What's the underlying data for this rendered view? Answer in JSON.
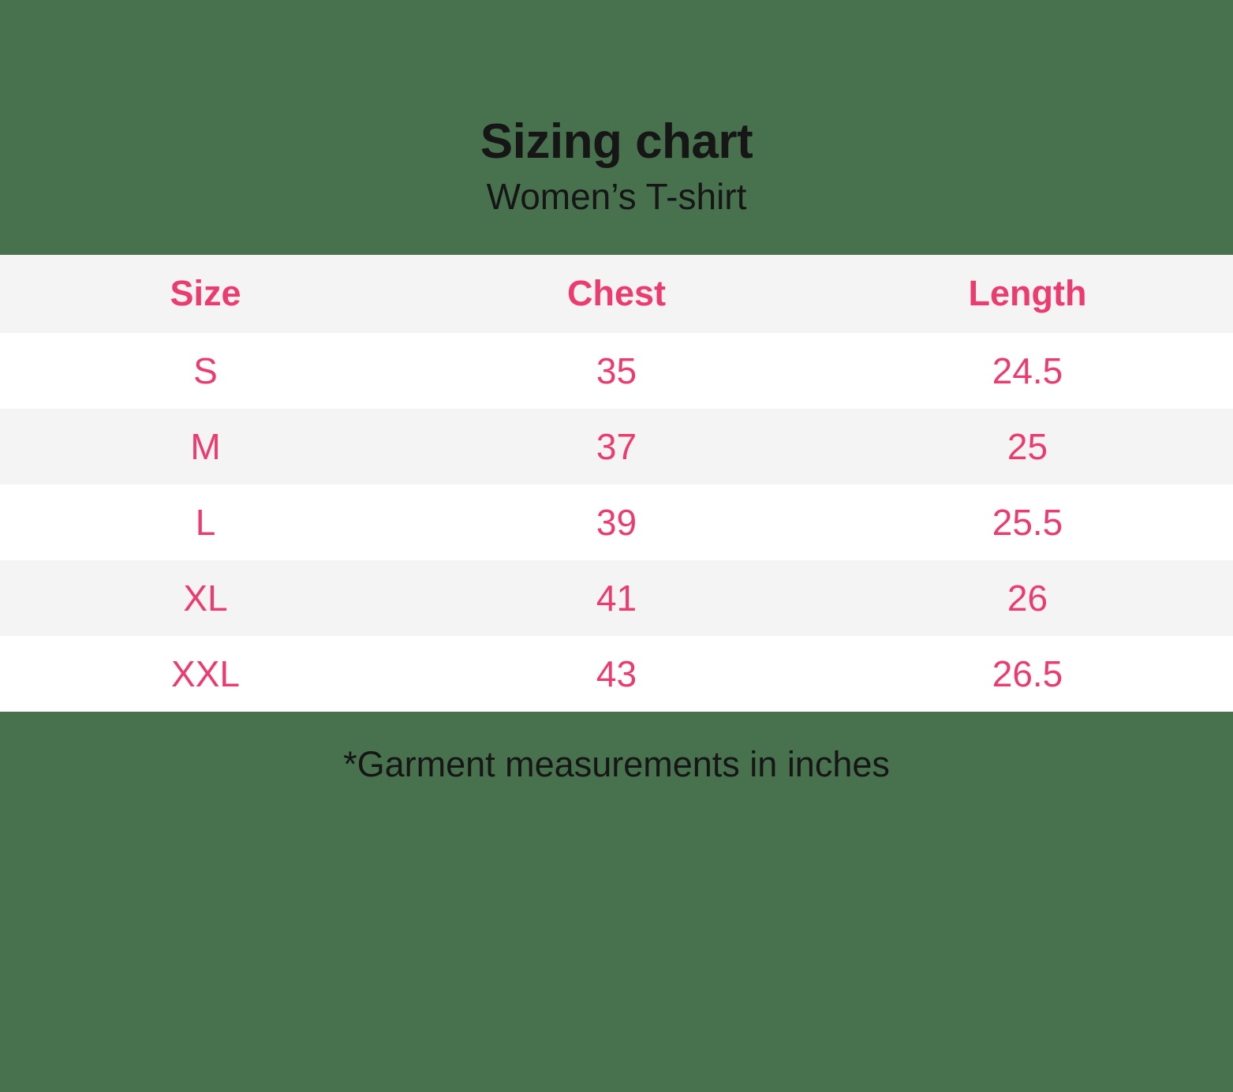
{
  "page": {
    "title": "Sizing chart",
    "subtitle": "Women’s T-shirt",
    "footnote": "*Garment measurements in inches"
  },
  "colors": {
    "background": "#48714E",
    "accent": "#EB3B6F",
    "row-gray": "#F4F4F5",
    "row-white": "#FFFFFF",
    "text": "#161616"
  },
  "chart_data": {
    "type": "table",
    "title": "Sizing chart",
    "subtitle": "Women’s T-shirt",
    "columns": [
      "Size",
      "Chest",
      "Length"
    ],
    "rows": [
      {
        "size": "S",
        "chest": 35,
        "length": 24.5
      },
      {
        "size": "M",
        "chest": 37,
        "length": 25
      },
      {
        "size": "L",
        "chest": 39,
        "length": 25.5
      },
      {
        "size": "XL",
        "chest": 41,
        "length": 26
      },
      {
        "size": "XXL",
        "chest": 43,
        "length": 26.5
      }
    ],
    "footnote": "*Garment measurements in inches",
    "units": "inches",
    "layout": {
      "alternating_rows": true,
      "header_background": "#F4F4F5",
      "first_data_row_background": "#FFFFFF"
    }
  }
}
